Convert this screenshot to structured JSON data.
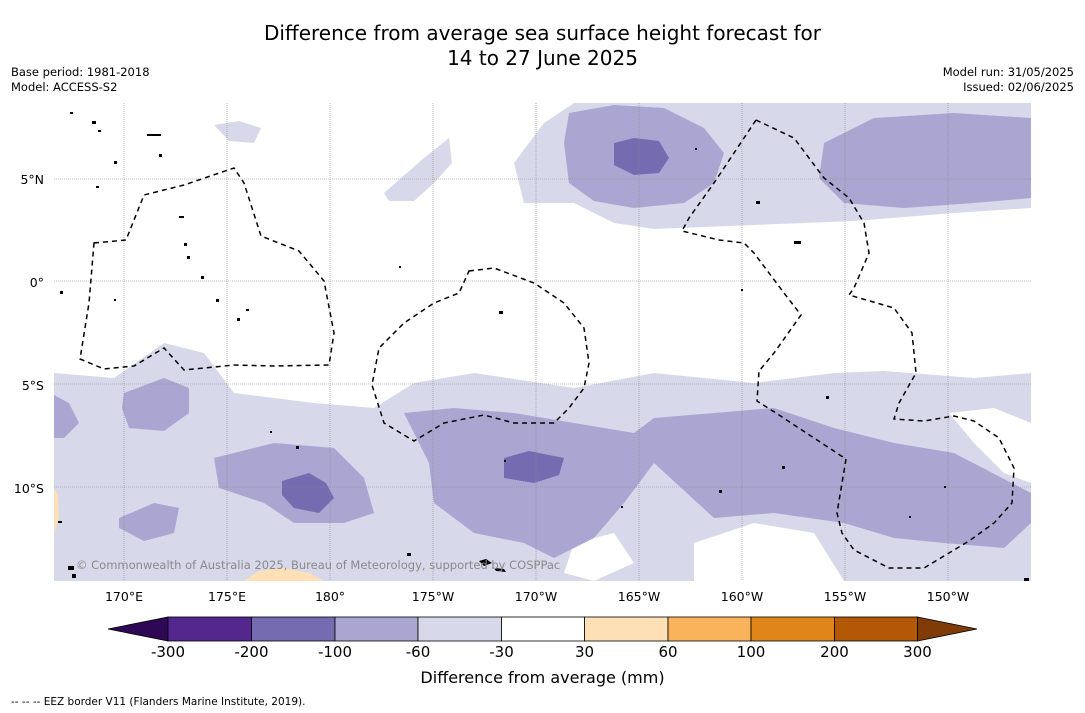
{
  "title": {
    "line1": "Difference from average sea surface height forecast for",
    "line2": "14 to 27 June 2025"
  },
  "meta_left": {
    "base_period": "Base period: 1981-2018",
    "model": "Model: ACCESS-S2"
  },
  "meta_right": {
    "model_run": "Model run: 31/05/2025",
    "issued": "Issued: 02/06/2025"
  },
  "lat_labels": [
    "5°N",
    "0°",
    "5°S",
    "10°S"
  ],
  "lon_labels": [
    "170°E",
    "175°E",
    "180°",
    "175°W",
    "170°W",
    "165°W",
    "160°W",
    "155°W",
    "150°W"
  ],
  "copyright": "© Commonwealth of Australia 2025, Bureau of Meteorology, supported by COSPPac",
  "colorbar": {
    "label": "Difference from average (mm)",
    "ticks": [
      "-300",
      "-200",
      "-100",
      "-60",
      "-30",
      "30",
      "60",
      "100",
      "200",
      "300"
    ],
    "colors": [
      "#2e0854",
      "#54278f",
      "#756bb1",
      "#aba5d1",
      "#d8d8eb",
      "#ffffff",
      "#fde0b5",
      "#f9b45b",
      "#e0851a",
      "#b35806",
      "#7f3b08"
    ]
  },
  "footnote": "--  --  -- EEZ border V11 (Flanders Marine Institute, 2019)."
}
